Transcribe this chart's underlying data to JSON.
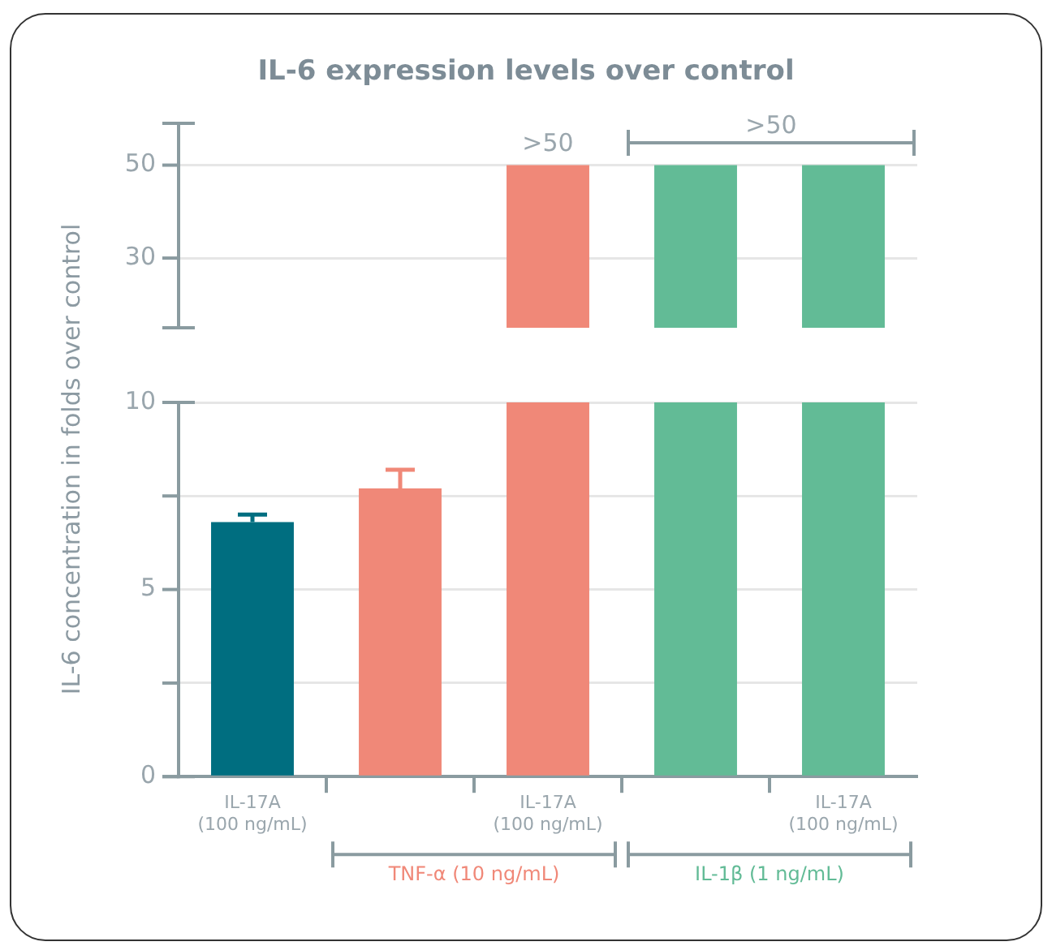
{
  "chart_data": [
    {
      "type": "bar",
      "title": "IL-6 expression levels over control",
      "categories": [
        null,
        null,
        null,
        null,
        null
      ],
      "values": [
        null,
        null,
        50,
        50,
        50
      ],
      "colors": [
        "#006e80",
        "#f08878",
        "#f08878",
        "#62bb96",
        "#62bb96"
      ],
      "ylim": [
        15,
        59
      ],
      "yticks": [
        30,
        50
      ],
      "grid": "y",
      "tick_labels": "y",
      "annotations": [
        ">50",
        ">50"
      ]
    },
    {
      "type": "bar",
      "ylabel": "IL-6 concentration in folds over control",
      "categories": [
        "IL-17A\n(100 ng/mL)",
        null,
        "IL-17A\n(100 ng/mL)",
        null,
        "IL-17A\n(100 ng/mL)"
      ],
      "values": [
        6.8,
        7.7,
        10,
        10,
        10
      ],
      "errors": [
        0.2,
        0.5,
        null,
        null,
        null
      ],
      "colors": [
        "#006e80",
        "#f08878",
        "#f08878",
        "#62bb96",
        "#62bb96"
      ],
      "ylim": [
        0,
        10
      ],
      "yticks": [
        0,
        {
          "value": 2.5,
          "label": null
        },
        5,
        {
          "value": 7.5,
          "label": null
        },
        10
      ],
      "grid": "y",
      "annotations": [
        "TNF-α (10 ng/mL)",
        "IL-1β (1 ng/mL)"
      ]
    }
  ]
}
